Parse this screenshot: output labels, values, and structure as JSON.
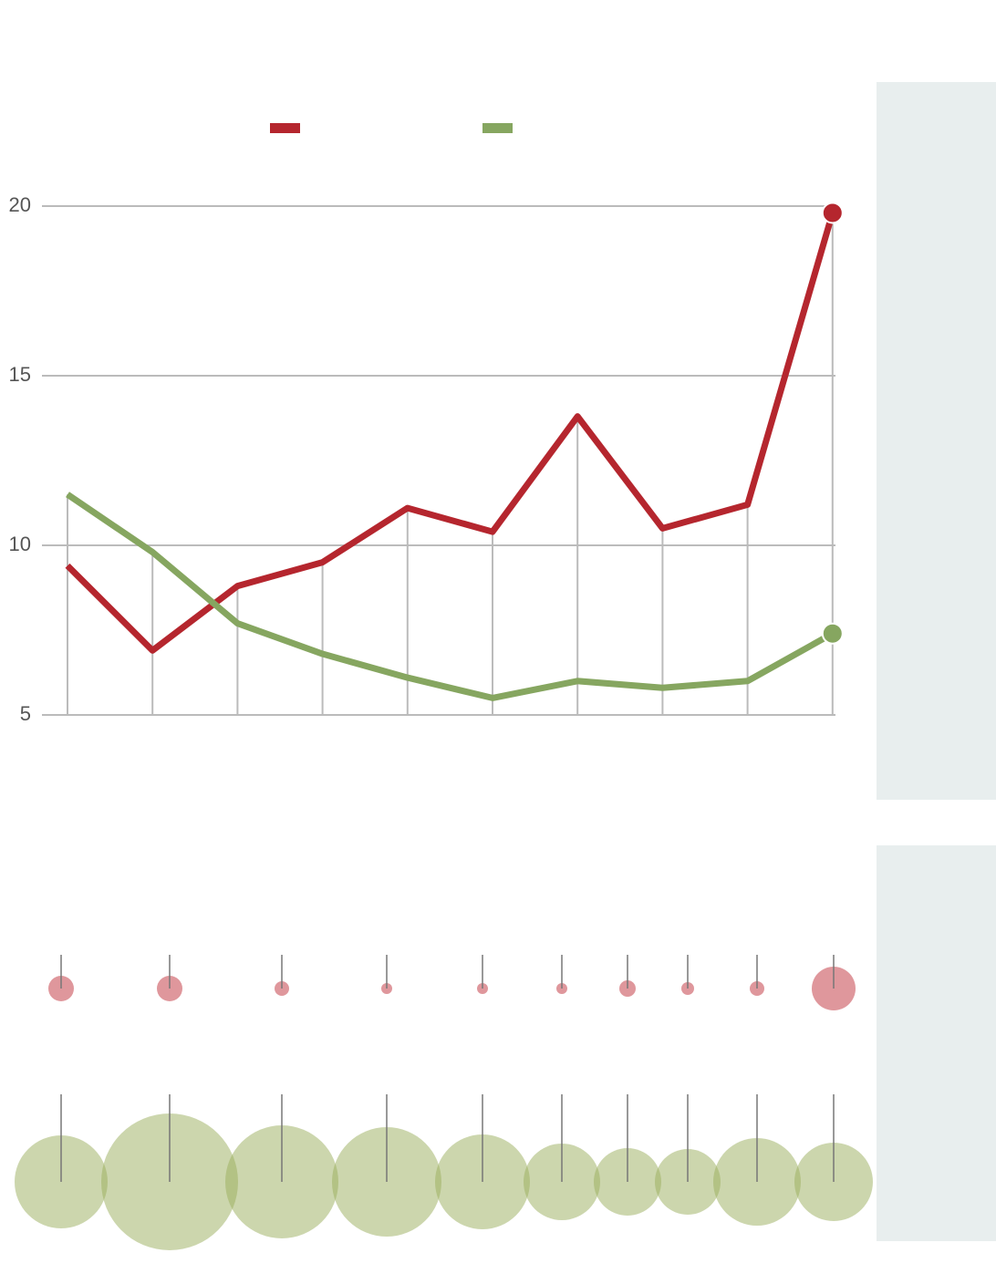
{
  "chart_data": [
    {
      "type": "line",
      "categories": [
        null,
        null,
        null,
        null,
        null,
        null,
        null,
        null,
        null,
        null
      ],
      "series": [
        {
          "color": "#b5262e",
          "values": [
            9.4,
            6.9,
            8.8,
            9.5,
            11.1,
            10.4,
            13.8,
            10.5,
            11.2,
            19.8
          ]
        },
        {
          "color": "#86a660",
          "values": [
            11.5,
            9.8,
            7.7,
            6.8,
            6.1,
            5.5,
            6.0,
            5.8,
            6.0,
            7.4
          ]
        }
      ],
      "ylim": [
        5,
        20
      ],
      "yticks": [
        5,
        10,
        15,
        20
      ],
      "grid": true
    },
    {
      "type": "bubble",
      "xlim": [
        0,
        1000
      ],
      "series": [
        {
          "color": "#c0303a",
          "x": [
            67,
            186,
            309,
            424,
            529,
            616,
            688,
            754,
            830,
            914
          ],
          "sizes": [
            14,
            14,
            8,
            6,
            6,
            6,
            9,
            7,
            8,
            24
          ]
        },
        {
          "color": "#9aae5c",
          "x": [
            67,
            186,
            309,
            424,
            529,
            616,
            688,
            754,
            830,
            914
          ],
          "sizes": [
            51,
            75,
            62,
            60,
            52,
            42,
            37,
            36,
            48,
            43
          ]
        }
      ]
    }
  ]
}
